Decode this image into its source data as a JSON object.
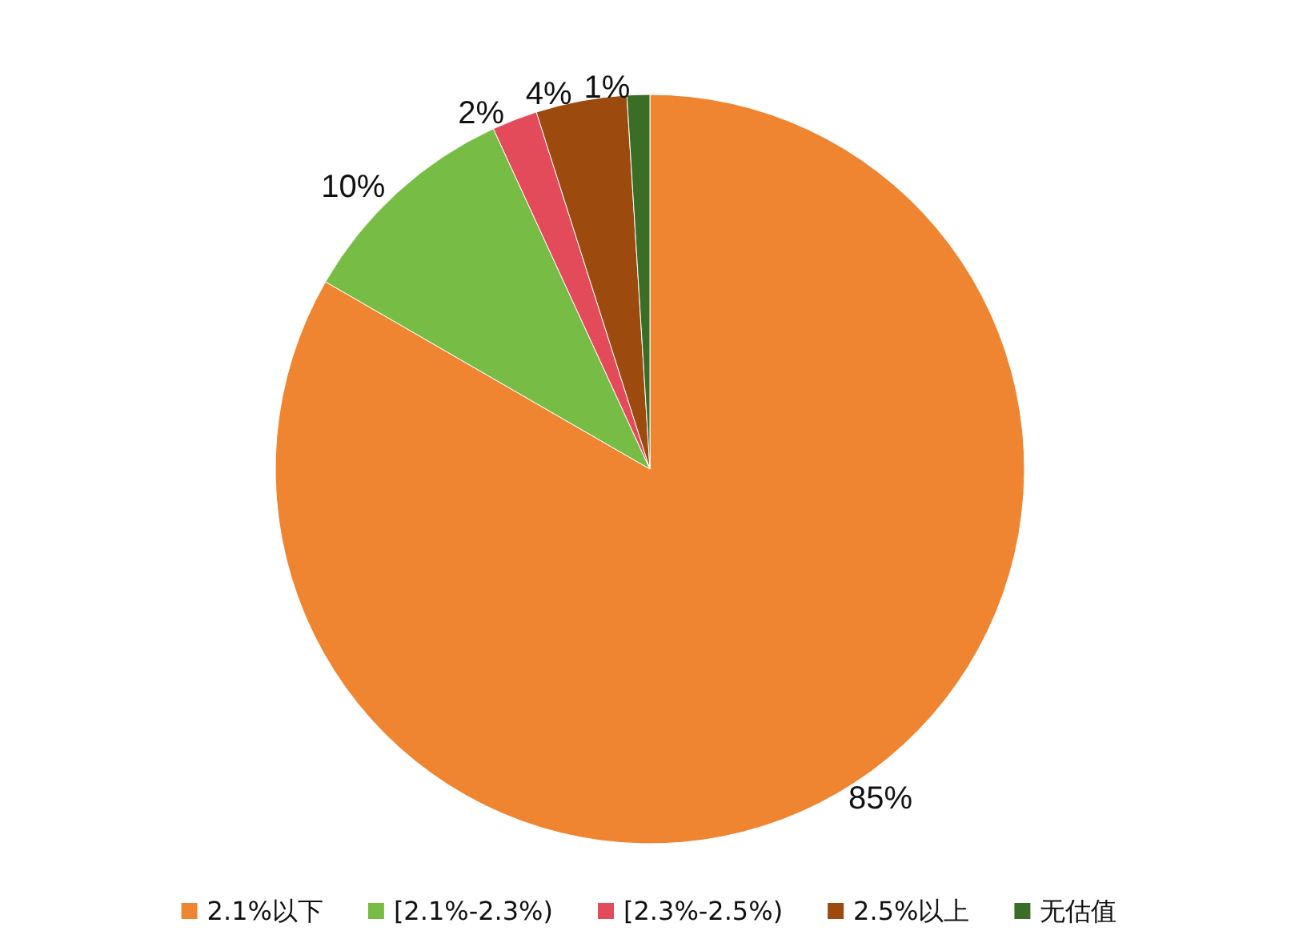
{
  "chart_data": {
    "type": "pie",
    "categories": [
      "2.1%以下",
      "[2.1%-2.3%)",
      "[2.3%-2.5%)",
      "2.5%以上",
      "无估值"
    ],
    "values": [
      85,
      10,
      2,
      4,
      1
    ],
    "value_labels": [
      "85%",
      "10%",
      "2%",
      "4%",
      "1%"
    ],
    "colors": [
      "#ef8530",
      "#77bd45",
      "#e34a5a",
      "#9c4a0d",
      "#3a6e26"
    ],
    "legend": "bottom"
  }
}
